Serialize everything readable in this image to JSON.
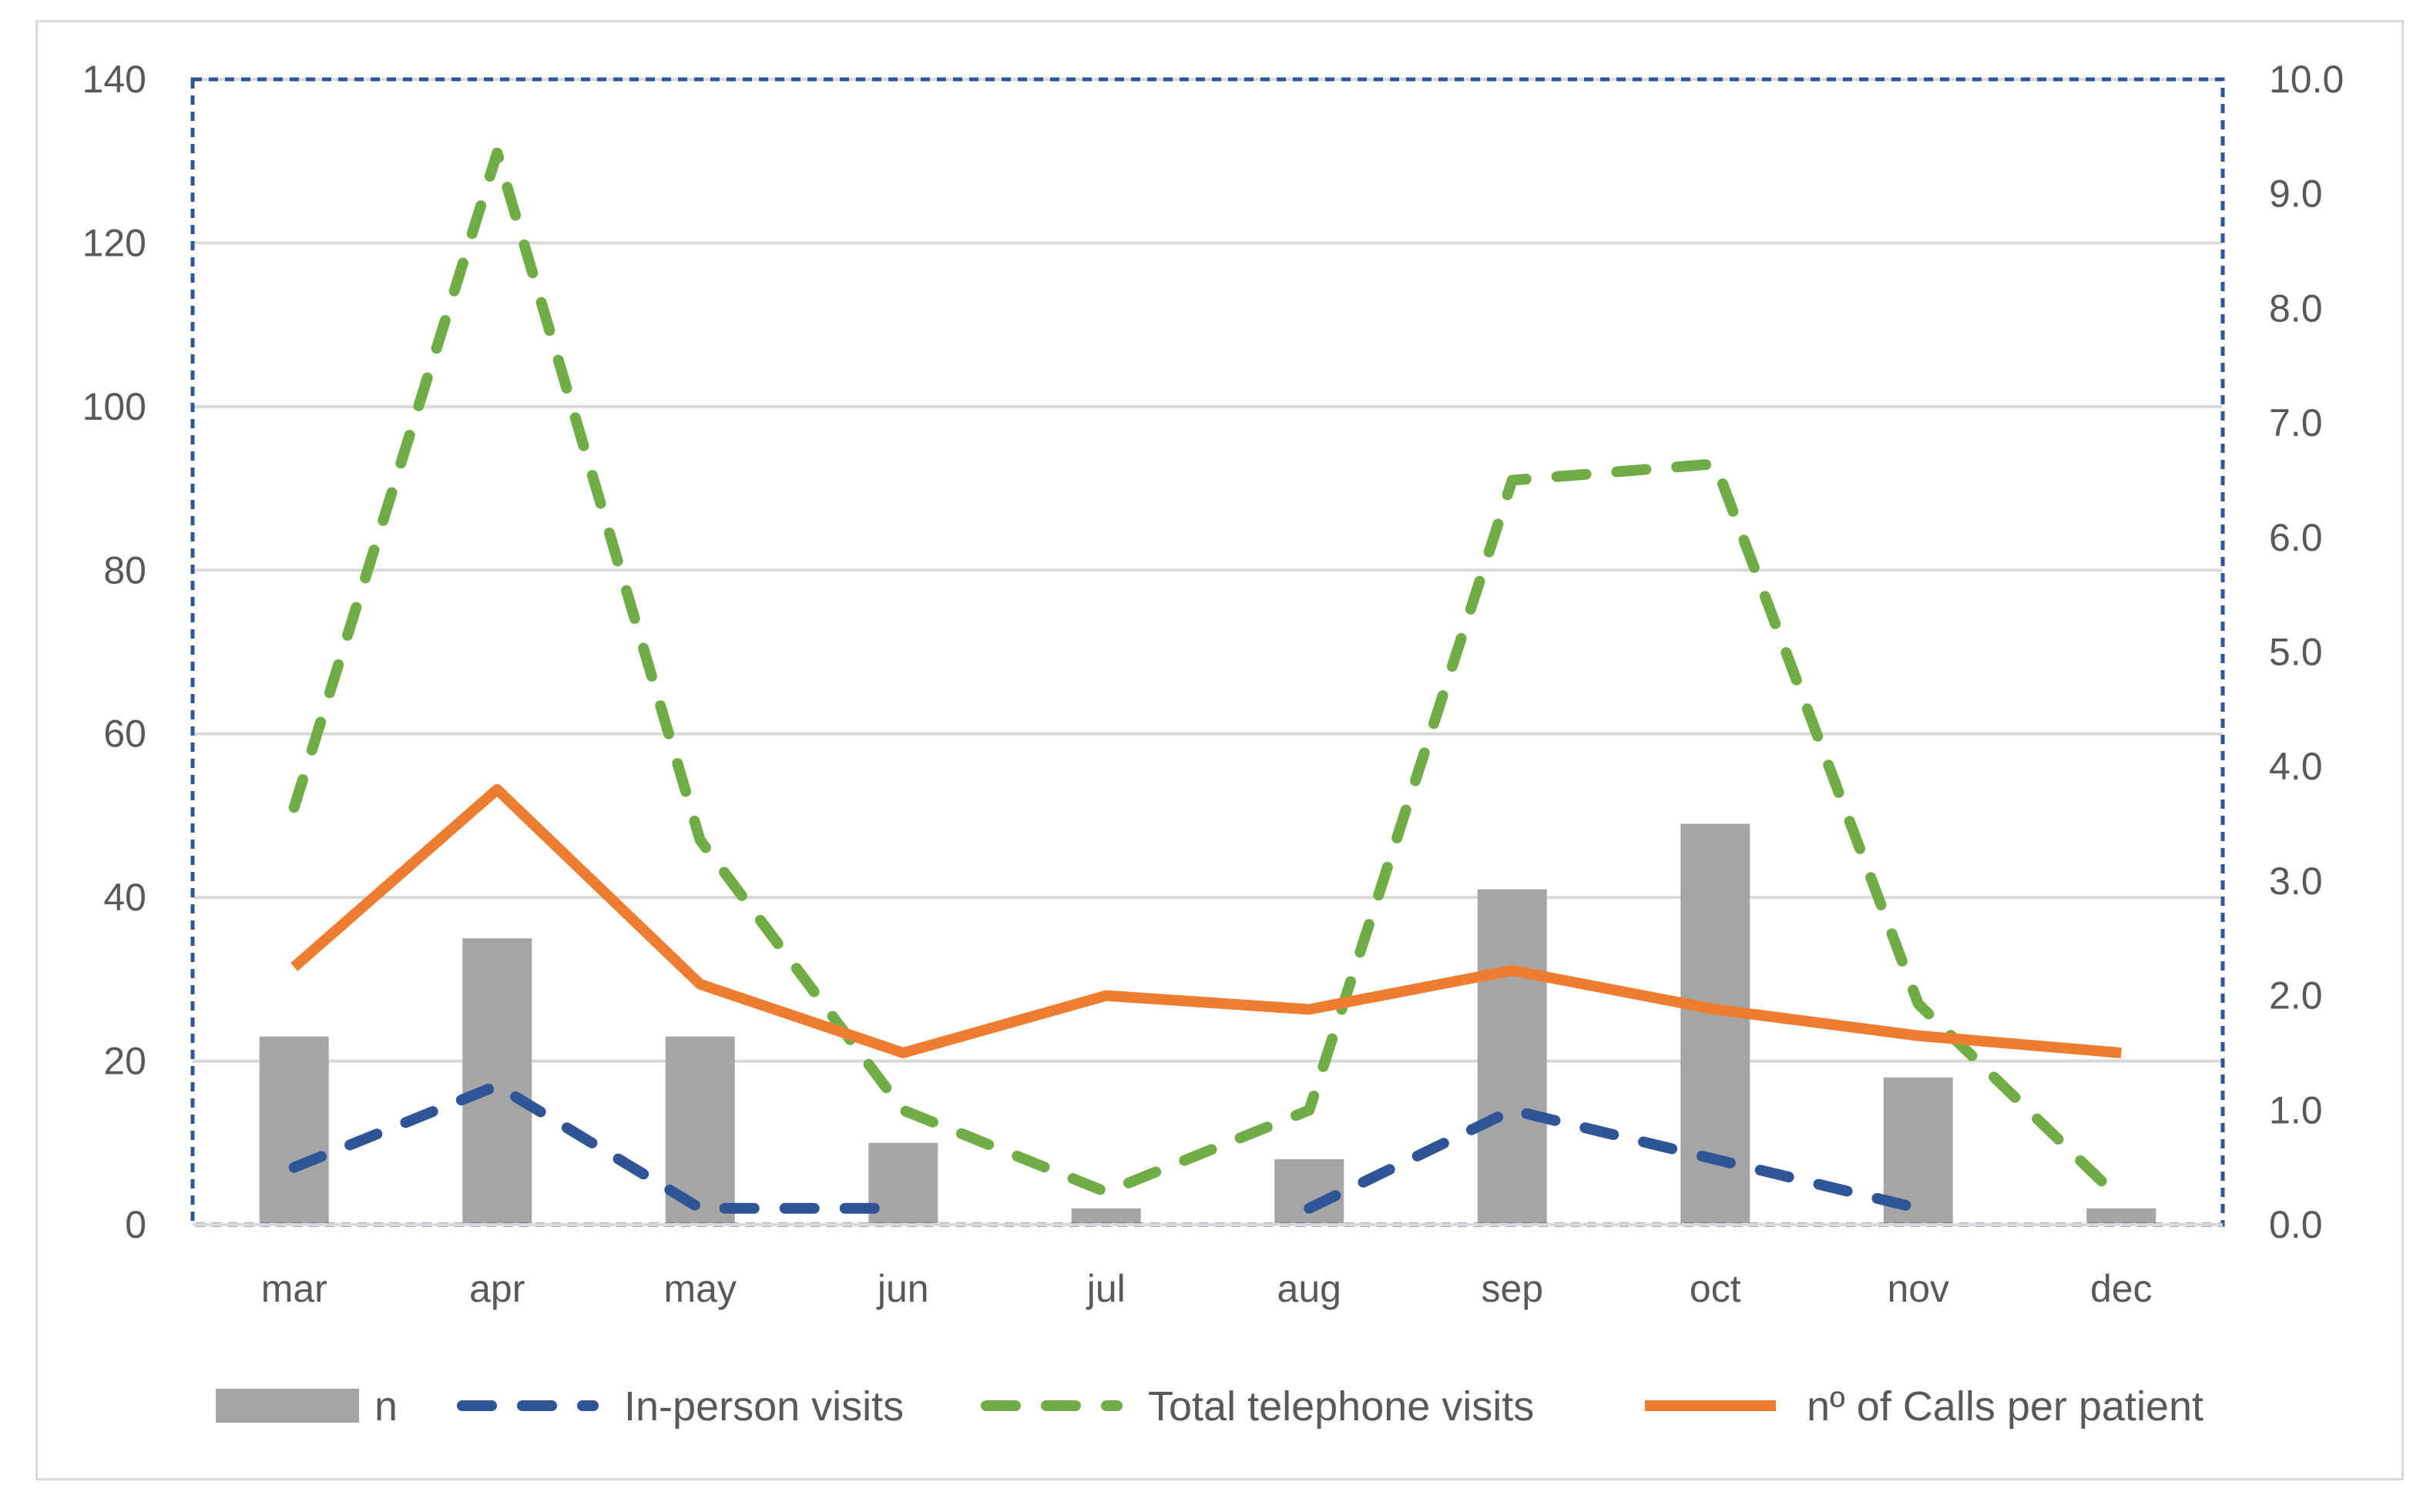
{
  "chart_data": {
    "type": "bar+line",
    "categories": [
      "mar",
      "apr",
      "may",
      "jun",
      "jul",
      "aug",
      "sep",
      "oct",
      "nov",
      "dec"
    ],
    "left_axis": {
      "min": 0,
      "max": 140,
      "step": 20,
      "labels": [
        "0",
        "20",
        "40",
        "60",
        "80",
        "100",
        "120",
        "140"
      ]
    },
    "right_axis": {
      "min": 0,
      "max": 10,
      "step": 1,
      "labels": [
        "0.0",
        "1.0",
        "2.0",
        "3.0",
        "4.0",
        "5.0",
        "6.0",
        "7.0",
        "8.0",
        "9.0",
        "10.0"
      ]
    },
    "grid": true,
    "legend_position": "bottom",
    "series": [
      {
        "name": "n",
        "kind": "bar",
        "axis": "left",
        "color": "#a5a5a5",
        "values": [
          23,
          35,
          23,
          10,
          2,
          8,
          41,
          49,
          18,
          2
        ]
      },
      {
        "name": "In-person visits",
        "kind": "line",
        "style": "dashed",
        "axis": "left",
        "color": "#2f5597",
        "values": [
          7,
          17,
          2,
          2,
          null,
          2,
          14,
          8,
          2,
          null
        ]
      },
      {
        "name": "Total telephone visits",
        "kind": "line",
        "style": "dashed",
        "axis": "left",
        "color": "#70ad47",
        "values": [
          51,
          131,
          47,
          14,
          4,
          14,
          91,
          93,
          27,
          3
        ]
      },
      {
        "name": "nº of Calls per patient",
        "kind": "line",
        "style": "solid",
        "axis": "right",
        "color": "#ed7d31",
        "values": [
          2.25,
          3.8,
          2.1,
          1.5,
          2.0,
          1.88,
          2.22,
          1.88,
          1.65,
          1.5
        ]
      }
    ]
  }
}
